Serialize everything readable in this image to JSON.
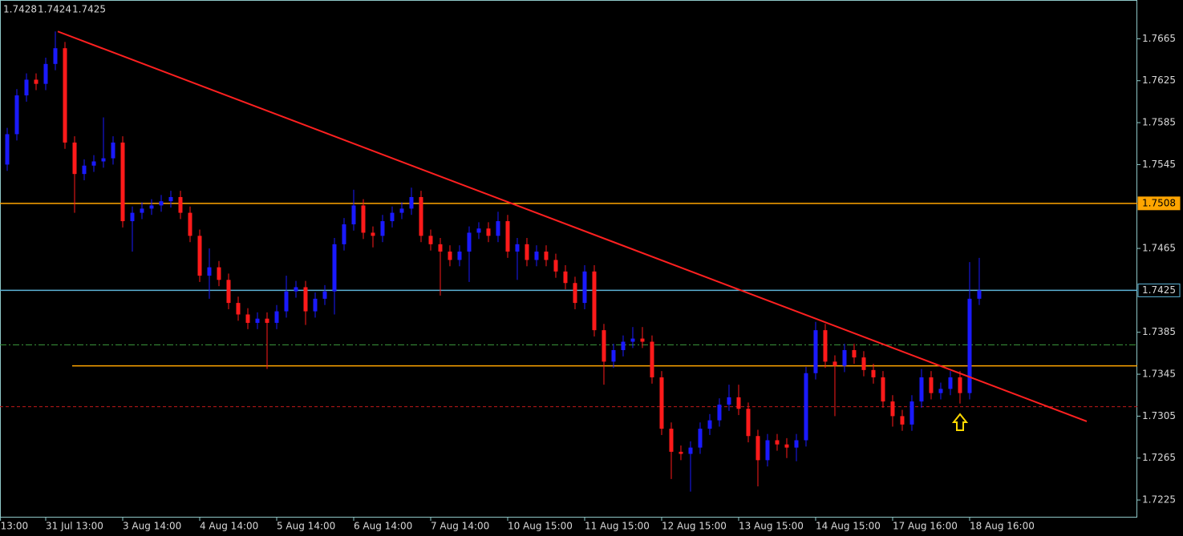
{
  "chart_data": {
    "type": "candlestick",
    "header": [
      1.7428,
      1.7424,
      1.7425
    ],
    "up_color": "#1a1aff",
    "down_color": "#ff1a1a",
    "xlim": [
      -0.75,
      117.42
    ],
    "ylim": [
      1.7209,
      1.7702
    ],
    "yticks": [
      1.7665,
      1.7625,
      1.7585,
      1.7545,
      1.7465,
      1.7385,
      1.7345,
      1.7305,
      1.7265,
      1.7225
    ],
    "xticks": [
      {
        "value": -0.7,
        "label": "13:00"
      },
      {
        "value": 4,
        "label": "31 Jul 13:00"
      },
      {
        "value": 12,
        "label": "3 Aug 14:00"
      },
      {
        "value": 20,
        "label": "4 Aug 14:00"
      },
      {
        "value": 28,
        "label": "5 Aug 14:00"
      },
      {
        "value": 36,
        "label": "6 Aug 14:00"
      },
      {
        "value": 44,
        "label": "7 Aug 14:00"
      },
      {
        "value": 52,
        "label": "10 Aug 15:00"
      },
      {
        "value": 60,
        "label": "11 Aug 15:00"
      },
      {
        "value": 68,
        "label": "12 Aug 15:00"
      },
      {
        "value": 76,
        "label": "13 Aug 15:00"
      },
      {
        "value": 84,
        "label": "14 Aug 15:00"
      },
      {
        "value": 92,
        "label": "17 Aug 16:00"
      },
      {
        "value": 100,
        "label": "18 Aug 16:00"
      }
    ],
    "open": [
      1.7545,
      1.7574,
      1.7611,
      1.7626,
      1.7622,
      1.7641,
      1.7656,
      1.7566,
      1.7536,
      1.7544,
      1.7548,
      1.7551,
      1.7566,
      1.7491,
      1.7499,
      1.7503,
      1.7506,
      1.751,
      1.7514,
      1.7499,
      1.7477,
      1.7439,
      1.7447,
      1.7435,
      1.7413,
      1.7402,
      1.7394,
      1.7398,
      1.7394,
      1.7405,
      1.7424,
      1.7428,
      1.7405,
      1.7417,
      1.7424,
      1.7469,
      1.7488,
      1.7506,
      1.748,
      1.7477,
      1.7491,
      1.7499,
      1.7503,
      1.7514,
      1.7477,
      1.7469,
      1.7462,
      1.7454,
      1.7462,
      1.748,
      1.7484,
      1.7477,
      1.7491,
      1.7462,
      1.7469,
      1.7454,
      1.7462,
      1.7454,
      1.7443,
      1.7432,
      1.7413,
      1.7443,
      1.7387,
      1.7357,
      1.7368,
      1.7376,
      1.7379,
      1.7376,
      1.7342,
      1.7293,
      1.7271,
      1.7269,
      1.7275,
      1.7293,
      1.7301,
      1.7316,
      1.7323,
      1.7312,
      1.7286,
      1.7263,
      1.7282,
      1.7278,
      1.7275,
      1.7282,
      1.7346,
      1.7387,
      1.7357,
      1.7353,
      1.7368,
      1.7361,
      1.7349,
      1.7342,
      1.7319,
      1.7305,
      1.7297,
      1.7319,
      1.7342,
      1.7327,
      1.7331,
      1.7342,
      1.7327,
      1.7417
    ],
    "high": [
      1.758,
      1.7617,
      1.7632,
      1.7632,
      1.7647,
      1.7672,
      1.7662,
      1.7572,
      1.755,
      1.7554,
      1.759,
      1.7572,
      1.7572,
      1.7505,
      1.7509,
      1.7512,
      1.7516,
      1.752,
      1.752,
      1.7505,
      1.7483,
      1.7465,
      1.7453,
      1.7441,
      1.7419,
      1.7408,
      1.7404,
      1.7404,
      1.7411,
      1.7439,
      1.7434,
      1.7434,
      1.7423,
      1.743,
      1.7475,
      1.7494,
      1.7521,
      1.7512,
      1.7486,
      1.7497,
      1.7505,
      1.7509,
      1.7523,
      1.752,
      1.7483,
      1.7475,
      1.7468,
      1.7468,
      1.7486,
      1.749,
      1.749,
      1.75,
      1.7497,
      1.7475,
      1.7475,
      1.7468,
      1.7468,
      1.746,
      1.7449,
      1.7438,
      1.7449,
      1.7449,
      1.7393,
      1.7374,
      1.7382,
      1.739,
      1.739,
      1.7382,
      1.7348,
      1.7299,
      1.7277,
      1.7281,
      1.7299,
      1.7307,
      1.7322,
      1.7335,
      1.7335,
      1.7318,
      1.7292,
      1.7288,
      1.7288,
      1.7284,
      1.7288,
      1.7352,
      1.7395,
      1.7393,
      1.7363,
      1.7374,
      1.7374,
      1.7367,
      1.7355,
      1.7348,
      1.7325,
      1.7311,
      1.7325,
      1.735,
      1.7348,
      1.7337,
      1.7348,
      1.7348,
      1.7452,
      1.7456
    ],
    "low": [
      1.7539,
      1.7568,
      1.7605,
      1.7616,
      1.7616,
      1.7635,
      1.756,
      1.7499,
      1.753,
      1.7538,
      1.7542,
      1.7545,
      1.7485,
      1.7462,
      1.7493,
      1.7497,
      1.75,
      1.7504,
      1.7493,
      1.7471,
      1.7433,
      1.7417,
      1.7429,
      1.7407,
      1.7396,
      1.7388,
      1.7388,
      1.735,
      1.7388,
      1.7399,
      1.7418,
      1.7392,
      1.7399,
      1.7411,
      1.7402,
      1.7463,
      1.7482,
      1.7474,
      1.7466,
      1.7471,
      1.7485,
      1.7493,
      1.7497,
      1.7471,
      1.7463,
      1.742,
      1.7448,
      1.7448,
      1.7433,
      1.7474,
      1.7471,
      1.7471,
      1.7456,
      1.7435,
      1.7448,
      1.7448,
      1.7448,
      1.7437,
      1.7426,
      1.7407,
      1.7407,
      1.7381,
      1.7335,
      1.7351,
      1.7362,
      1.737,
      1.737,
      1.7336,
      1.7287,
      1.7245,
      1.7263,
      1.7233,
      1.7269,
      1.7287,
      1.7295,
      1.731,
      1.7306,
      1.728,
      1.7238,
      1.7257,
      1.7272,
      1.7265,
      1.7262,
      1.7276,
      1.734,
      1.7351,
      1.7305,
      1.7347,
      1.7355,
      1.7343,
      1.7336,
      1.7313,
      1.7295,
      1.7291,
      1.7291,
      1.7313,
      1.7321,
      1.7321,
      1.7325,
      1.7317,
      1.7321,
      1.7411
    ],
    "close": [
      1.7574,
      1.7611,
      1.7626,
      1.7622,
      1.7641,
      1.7656,
      1.7566,
      1.7536,
      1.7544,
      1.7548,
      1.7551,
      1.7566,
      1.7491,
      1.7499,
      1.7503,
      1.7506,
      1.751,
      1.7514,
      1.7499,
      1.7477,
      1.7439,
      1.7447,
      1.7435,
      1.7413,
      1.7402,
      1.7394,
      1.7398,
      1.7394,
      1.7405,
      1.7424,
      1.7428,
      1.7405,
      1.7417,
      1.7424,
      1.7469,
      1.7488,
      1.7506,
      1.748,
      1.7477,
      1.7491,
      1.7499,
      1.7503,
      1.7514,
      1.7477,
      1.7469,
      1.7462,
      1.7454,
      1.7462,
      1.748,
      1.7484,
      1.7477,
      1.7491,
      1.7462,
      1.7469,
      1.7454,
      1.7462,
      1.7454,
      1.7443,
      1.7432,
      1.7413,
      1.7443,
      1.7387,
      1.7357,
      1.7368,
      1.7376,
      1.7379,
      1.7376,
      1.7342,
      1.7293,
      1.7271,
      1.7269,
      1.7275,
      1.7293,
      1.7301,
      1.7316,
      1.7323,
      1.7312,
      1.7286,
      1.7263,
      1.7282,
      1.7278,
      1.7275,
      1.7282,
      1.7346,
      1.7387,
      1.7357,
      1.7353,
      1.7368,
      1.7361,
      1.7349,
      1.7342,
      1.7319,
      1.7305,
      1.7297,
      1.7319,
      1.7342,
      1.7327,
      1.7331,
      1.7342,
      1.7327,
      1.7417,
      1.7425
    ],
    "levels": [
      {
        "value": 1.7508,
        "color": "#ffa500",
        "style": "solid",
        "box": "filled"
      },
      {
        "value": 1.7353,
        "color": "#ffa500",
        "style": "solid",
        "x_start": 6.75
      },
      {
        "value": 1.7373,
        "color": "#3d9a3d",
        "style": "dashdot"
      },
      {
        "value": 1.7314,
        "color": "#c01818",
        "style": "dash"
      },
      {
        "value": 1.7425,
        "color": "#5cb3d6",
        "style": "solid",
        "box": "outline"
      }
    ],
    "trendline": {
      "x": [
        5.25,
        112.17
      ],
      "y": [
        1.7672,
        1.73
      ],
      "color": "#ff2020"
    }
  }
}
